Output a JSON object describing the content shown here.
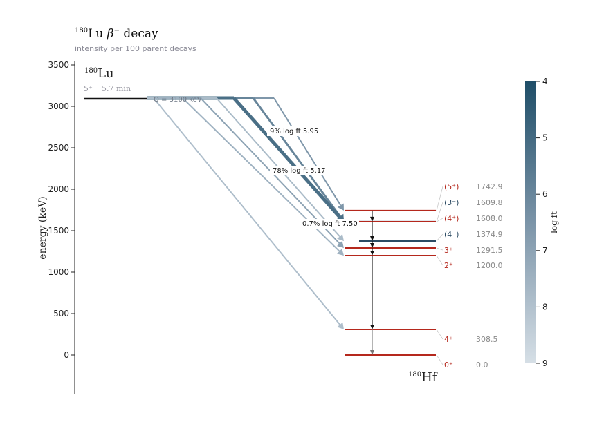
{
  "title": {
    "pre": "180",
    "mid": "Lu  ",
    "beta": "β",
    "minus": "−",
    "post": " decay"
  },
  "subtitle": "intensity per 100 parent decays",
  "y_axis": {
    "label": "energy (keV)",
    "ticks": [
      "0",
      "500",
      "1000",
      "1500",
      "2000",
      "2500",
      "3000",
      "3500"
    ]
  },
  "parent": {
    "mass": "180",
    "symbol": "Lu",
    "spin": "5⁺",
    "halflife": "5.7 min",
    "energy_kev": 3100,
    "q_label": "Q = 3100 keV"
  },
  "daughter": {
    "mass": "180",
    "symbol": "Hf"
  },
  "colors": {
    "parity_plus": "#b5281d",
    "parity_minus": "#2c4b63",
    "parent_line": "#111111",
    "gamma": "#111111"
  },
  "colorbar": {
    "label": "log ft",
    "min": 4,
    "max": 9,
    "ticks": [
      "4",
      "5",
      "6",
      "7",
      "8",
      "9"
    ]
  },
  "chart_data": {
    "type": "level-scheme",
    "levels": [
      {
        "energy": 1742.9,
        "jpi": "(5⁺)",
        "parity": "+",
        "energy_label": "1742.9"
      },
      {
        "energy": 1609.8,
        "jpi": "(3⁻)",
        "parity": "-",
        "energy_label": "1609.8"
      },
      {
        "energy": 1608.0,
        "jpi": "(4⁺)",
        "parity": "+",
        "energy_label": "1608.0"
      },
      {
        "energy": 1374.9,
        "jpi": "(4⁻)",
        "parity": "-",
        "energy_label": "1374.9"
      },
      {
        "energy": 1291.5,
        "jpi": "3⁺",
        "parity": "+",
        "energy_label": "1291.5"
      },
      {
        "energy": 1200.0,
        "jpi": "2⁺",
        "parity": "+",
        "energy_label": "1200.0"
      },
      {
        "energy": 308.5,
        "jpi": "4⁺",
        "parity": "+",
        "energy_label": "308.5"
      },
      {
        "energy": 0.0,
        "jpi": "0⁺",
        "parity": "+",
        "energy_label": "0.0"
      }
    ],
    "beta_branches": [
      {
        "to": 1742.9,
        "logft": 6.6
      },
      {
        "to": 1609.8,
        "logft": 5.95,
        "intensity": "9%",
        "label": "9%  log ft 5.95"
      },
      {
        "to": 1608.0,
        "logft": 5.17,
        "intensity": "78%",
        "label": "78%  log ft 5.17"
      },
      {
        "to": 1374.9,
        "logft": 7.8
      },
      {
        "to": 1291.5,
        "logft": 7.0
      },
      {
        "to": 1200.0,
        "logft": 7.5,
        "intensity": "0.7%",
        "label": "0.7%  log ft 7.50"
      },
      {
        "to": 308.5,
        "logft": 7.9
      }
    ],
    "gammas": [
      {
        "from": 1742.9,
        "to": 1609.8
      },
      {
        "from": 1609.8,
        "to": 1374.9
      },
      {
        "from": 1374.9,
        "to": 1291.5
      },
      {
        "from": 1291.5,
        "to": 1200.0
      },
      {
        "from": 1200.0,
        "to": 308.5
      },
      {
        "from": 308.5,
        "to": 0.0
      }
    ],
    "ylim": [
      0,
      3500
    ]
  }
}
